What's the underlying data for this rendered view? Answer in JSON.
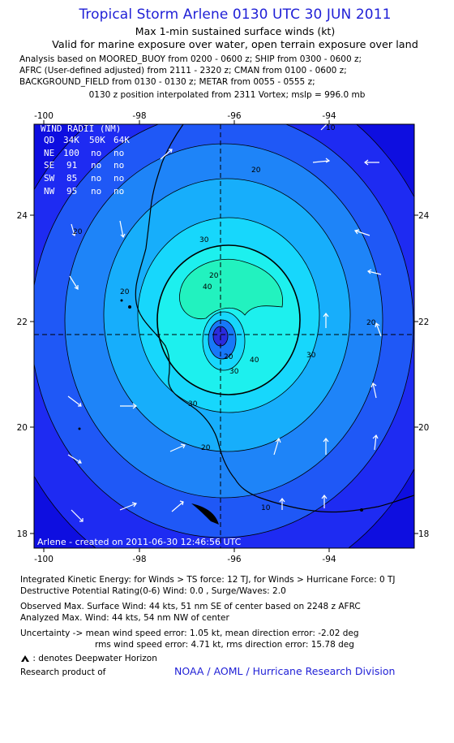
{
  "header": {
    "title": "Tropical Storm Arlene 0130 UTC 30 JUN 2011",
    "subtitle1": "Max 1-min sustained surface winds (kt)",
    "subtitle2": "Valid for marine exposure over water, open terrain exposure over land"
  },
  "analysis": {
    "lines": [
      "Analysis based on MOORED_BUOY from 0200 - 0600 z; SHIP from 0300 - 0600 z;",
      "AFRC (User-defined adjusted) from 2111 - 2320 z; CMAN from 0100 - 0600 z;",
      "BACKGROUND_FIELD from 0130 - 0130 z; METAR from 0055 - 0555 z;"
    ],
    "position": "0130 z position interpolated from 2311 Vortex; mslp = 996.0 mb"
  },
  "map": {
    "x_ticks": [
      "-100",
      "-98",
      "-96",
      "-94"
    ],
    "y_ticks": [
      "24",
      "22",
      "20",
      "18"
    ],
    "contour_labels": [
      "20",
      "30",
      "40",
      "20",
      "30",
      "40",
      "20",
      "30",
      "20",
      "30",
      "20",
      "10",
      "20",
      "10",
      "20"
    ],
    "wind_radii": {
      "title": "WIND RADII (NM)",
      "header": [
        "QD",
        "34K",
        "50K",
        "64K"
      ],
      "rows": [
        [
          "NE",
          "100",
          "no",
          "no"
        ],
        [
          "SE",
          "91",
          "no",
          "no"
        ],
        [
          "SW",
          "85",
          "no",
          "no"
        ],
        [
          "NW",
          "95",
          "no",
          "no"
        ]
      ]
    },
    "credit": "Arlene - created on 2011-06-30 12:46:56 UTC",
    "colors": {
      "ring_outer": "#1e2bf2",
      "ring_2": "#1f58f6",
      "ring_3": "#1e84f8",
      "ring_4": "#17aefb",
      "ring_5": "#17d7fc",
      "ring_6": "#1df0ee",
      "core_max": "#22f2bf",
      "eye_outer": "#1778f8",
      "eye_inner": "#2a2bde",
      "background": "#0e0ee0"
    }
  },
  "footer": {
    "ike": "Integrated Kinetic Energy:  for Winds > TS force: 12 TJ,  for Winds > Hurricane Force: 0 TJ",
    "dpr": "Destructive Potential Rating(0-6)   Wind: 0.0 , Surge/Waves: 2.0",
    "obs_max": "Observed Max. Surface Wind: 44 kts, 51 nm SE of center based on 2248 z AFRC",
    "analyzed_max": "Analyzed Max. Wind: 44 kts, 54 nm NW of center",
    "uncertainty1": "Uncertainty -> mean wind speed error: 1.05 kt,   mean direction error:  -2.02 deg",
    "uncertainty2": "rms wind speed error: 4.71 kt,   rms direction error: 15.78 deg",
    "deepwater": ": denotes Deepwater Horizon",
    "research": "Research product of",
    "org": "NOAA / AOML / Hurricane Research Division"
  }
}
